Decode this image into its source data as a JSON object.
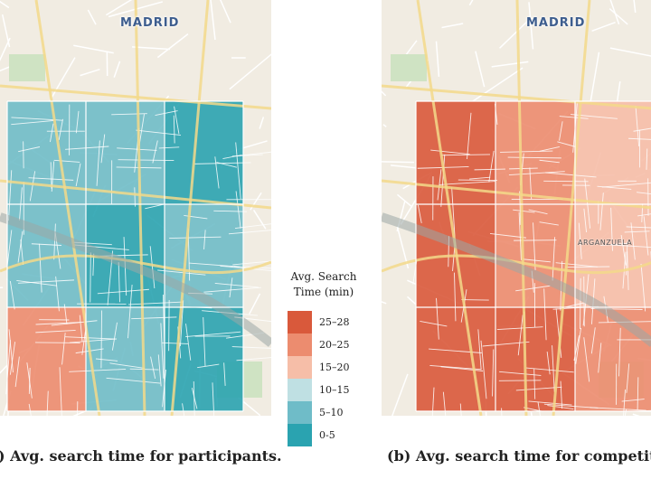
{
  "panel_a": {
    "city_label": "MADRID",
    "caption": ") Avg. search time for participants."
  },
  "panel_b": {
    "city_label": "MADRID",
    "district_label": "ARGANZUELA",
    "caption": "(b) Avg. search time for competito"
  },
  "legend": {
    "title_line1": "Avg. Search",
    "title_line2": "Time (min)",
    "bins": [
      {
        "label": "25–28",
        "color": "#d9593b"
      },
      {
        "label": "20–25",
        "color": "#ec8c6f"
      },
      {
        "label": "15–20",
        "color": "#f6bea8"
      },
      {
        "label": "10–15",
        "color": "#bfe0e3"
      },
      {
        "label": "5–10",
        "color": "#6fbcc8"
      },
      {
        "label": "0-5",
        "color": "#2aa3b0"
      }
    ]
  },
  "grid_data": {
    "panel_a": [
      [
        "5–10",
        "5–10",
        "0-5"
      ],
      [
        "5–10",
        "0-5",
        "5–10"
      ],
      [
        "20–25",
        "5–10",
        "0-5"
      ]
    ],
    "panel_b": [
      [
        "25–28",
        "20–25",
        "15–20"
      ],
      [
        "25–28",
        "20–25",
        "15–20"
      ],
      [
        "25–28",
        "25–28",
        "20–25"
      ]
    ]
  }
}
